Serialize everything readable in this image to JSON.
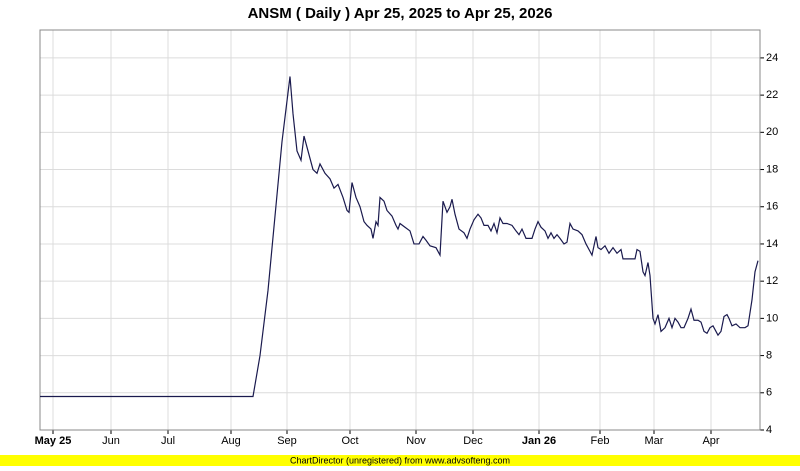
{
  "chart_data": {
    "type": "line",
    "title": "ANSM ( Daily ) Apr 25, 2025 to Apr 25, 2026",
    "footer": "ChartDirector (unregistered) from www.advsofteng.com",
    "grid": true,
    "y_axis_side": "right",
    "xlim": [
      0,
      720
    ],
    "ylim": [
      4,
      25.5
    ],
    "yticks": [
      4,
      6,
      8,
      10,
      12,
      14,
      16,
      18,
      20,
      22,
      24
    ],
    "xticks": [
      {
        "value": 13,
        "label": "May 25"
      },
      {
        "value": 71,
        "label": "Jun"
      },
      {
        "value": 128,
        "label": "Jul"
      },
      {
        "value": 191,
        "label": "Aug"
      },
      {
        "value": 247,
        "label": "Sep"
      },
      {
        "value": 310,
        "label": "Oct"
      },
      {
        "value": 376,
        "label": "Nov"
      },
      {
        "value": 433,
        "label": "Dec"
      },
      {
        "value": 499,
        "label": "Jan 26"
      },
      {
        "value": 560,
        "label": "Feb"
      },
      {
        "value": 614,
        "label": "Mar"
      },
      {
        "value": 671,
        "label": "Apr"
      }
    ],
    "series": [
      {
        "name": "ANSM",
        "color": "#1a1a4e",
        "x": [
          0,
          213,
          220,
          228,
          235,
          242,
          250,
          253,
          257,
          261,
          264,
          268,
          273,
          277,
          280,
          285,
          290,
          294,
          298,
          303,
          307,
          309,
          312,
          316,
          320,
          324,
          327,
          331,
          333,
          336,
          338,
          340,
          344,
          347,
          352,
          356,
          358,
          360,
          365,
          370,
          374,
          379,
          383,
          386,
          390,
          396,
          400,
          403,
          407,
          410,
          412,
          415,
          419,
          424,
          427,
          430,
          434,
          438,
          441,
          444,
          448,
          451,
          454,
          457,
          460,
          463,
          467,
          472,
          476,
          479,
          482,
          486,
          492,
          495,
          498,
          501,
          505,
          508,
          511,
          514,
          517,
          520,
          524,
          527,
          530,
          533,
          538,
          542,
          546,
          550,
          552,
          556,
          558,
          561,
          565,
          569,
          573,
          577,
          581,
          583,
          589,
          595,
          597,
          600,
          603,
          605,
          608,
          610,
          613,
          615,
          618,
          621,
          625,
          629,
          632,
          635,
          638,
          641,
          644,
          648,
          651,
          654,
          658,
          661,
          664,
          667,
          670,
          673,
          675,
          678,
          681,
          684,
          687,
          689,
          692,
          696,
          700,
          705,
          708,
          712,
          715,
          718
        ],
        "values": [
          5.8,
          5.8,
          8,
          11.5,
          15.5,
          19.5,
          23,
          21,
          19,
          18.5,
          19.8,
          19,
          18,
          17.8,
          18.3,
          17.8,
          17.5,
          17,
          17.2,
          16.5,
          15.8,
          15.7,
          17.3,
          16.5,
          16,
          15.2,
          15,
          14.8,
          14.3,
          15.2,
          15,
          16.5,
          16.3,
          15.8,
          15.5,
          15,
          14.8,
          15.1,
          14.9,
          14.7,
          14,
          14,
          14.4,
          14.2,
          13.9,
          13.8,
          13.4,
          16.3,
          15.7,
          16,
          16.4,
          15.6,
          14.8,
          14.6,
          14.3,
          14.8,
          15.3,
          15.6,
          15.4,
          15,
          15,
          14.7,
          15.1,
          14.6,
          15.4,
          15.1,
          15.1,
          15,
          14.7,
          14.5,
          14.8,
          14.3,
          14.3,
          14.8,
          15.2,
          14.9,
          14.7,
          14.3,
          14.6,
          14.3,
          14.5,
          14.3,
          14,
          14.1,
          15.1,
          14.8,
          14.7,
          14.5,
          14,
          13.6,
          13.4,
          14.4,
          13.8,
          13.7,
          13.9,
          13.5,
          13.8,
          13.5,
          13.7,
          13.2,
          13.2,
          13.2,
          13.7,
          13.6,
          12.5,
          12.3,
          13,
          12.3,
          10,
          9.7,
          10.2,
          9.3,
          9.5,
          10,
          9.5,
          10,
          9.8,
          9.5,
          9.5,
          10,
          10.5,
          9.9,
          9.9,
          9.8,
          9.3,
          9.2,
          9.5,
          9.6,
          9.4,
          9.1,
          9.3,
          10.1,
          10.2,
          10,
          9.6,
          9.7,
          9.5,
          9.5,
          9.6,
          11,
          12.5,
          13.1
        ]
      }
    ]
  }
}
